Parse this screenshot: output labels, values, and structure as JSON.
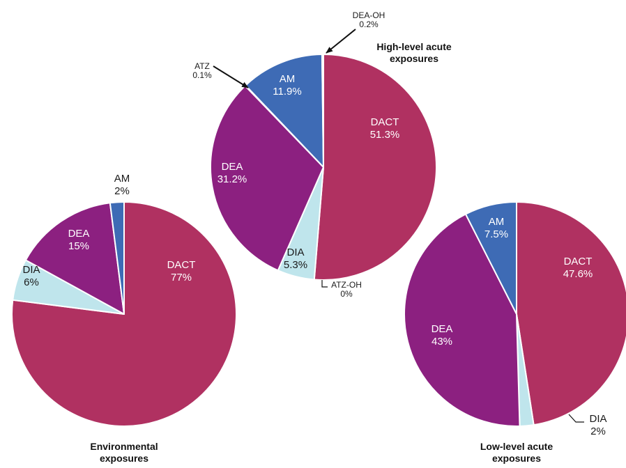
{
  "colors": {
    "DACT": "#B03161",
    "DEA": "#8C2080",
    "DIA": "#BFE5EC",
    "AM": "#3E6BB5",
    "ATZ": "#6A8FC8",
    "DEA-OH": "#3E6BB5",
    "ATZ-OH": "#BFE5EC"
  },
  "chart_data": [
    {
      "type": "pie",
      "title": [
        "Environmental",
        "exposures"
      ],
      "slices": [
        {
          "name": "DACT",
          "value": 77
        },
        {
          "name": "DIA",
          "value": 6
        },
        {
          "name": "DEA",
          "value": 15
        },
        {
          "name": "AM",
          "value": 2
        }
      ],
      "labels": [
        {
          "lines": [
            "DACT",
            "77%"
          ]
        },
        {
          "lines": [
            "DIA",
            "6%"
          ]
        },
        {
          "lines": [
            "DEA",
            "15%"
          ]
        },
        {
          "lines": [
            "AM",
            "2%"
          ]
        }
      ]
    },
    {
      "type": "pie",
      "title": [
        "High-level acute",
        "exposures"
      ],
      "slices": [
        {
          "name": "DACT",
          "value": 51.3
        },
        {
          "name": "ATZ-OH",
          "value": 0
        },
        {
          "name": "DIA",
          "value": 5.3
        },
        {
          "name": "DEA",
          "value": 31.2
        },
        {
          "name": "ATZ",
          "value": 0.1
        },
        {
          "name": "AM",
          "value": 11.9
        },
        {
          "name": "DEA-OH",
          "value": 0.2
        }
      ],
      "labels": [
        {
          "lines": [
            "DACT",
            "51.3%"
          ]
        },
        {
          "lines": [
            "DIA",
            "5.3%"
          ]
        },
        {
          "lines": [
            "DEA",
            "31.2%"
          ]
        },
        {
          "lines": [
            "AM",
            "11.9%"
          ]
        },
        {
          "lines": [
            "ATZ",
            "0.1%"
          ]
        },
        {
          "lines": [
            "DEA-OH",
            "0.2%"
          ]
        },
        {
          "lines": [
            "ATZ-OH",
            "0%"
          ]
        }
      ]
    },
    {
      "type": "pie",
      "title": [
        "Low-level acute",
        "exposures"
      ],
      "slices": [
        {
          "name": "DACT",
          "value": 47.6
        },
        {
          "name": "DIA",
          "value": 2
        },
        {
          "name": "DEA",
          "value": 43
        },
        {
          "name": "AM",
          "value": 7.5
        }
      ],
      "labels": [
        {
          "lines": [
            "DACT",
            "47.6%"
          ]
        },
        {
          "lines": [
            "DIA",
            "2%"
          ]
        },
        {
          "lines": [
            "DEA",
            "43%"
          ]
        },
        {
          "lines": [
            "AM",
            "7.5%"
          ]
        }
      ]
    }
  ]
}
